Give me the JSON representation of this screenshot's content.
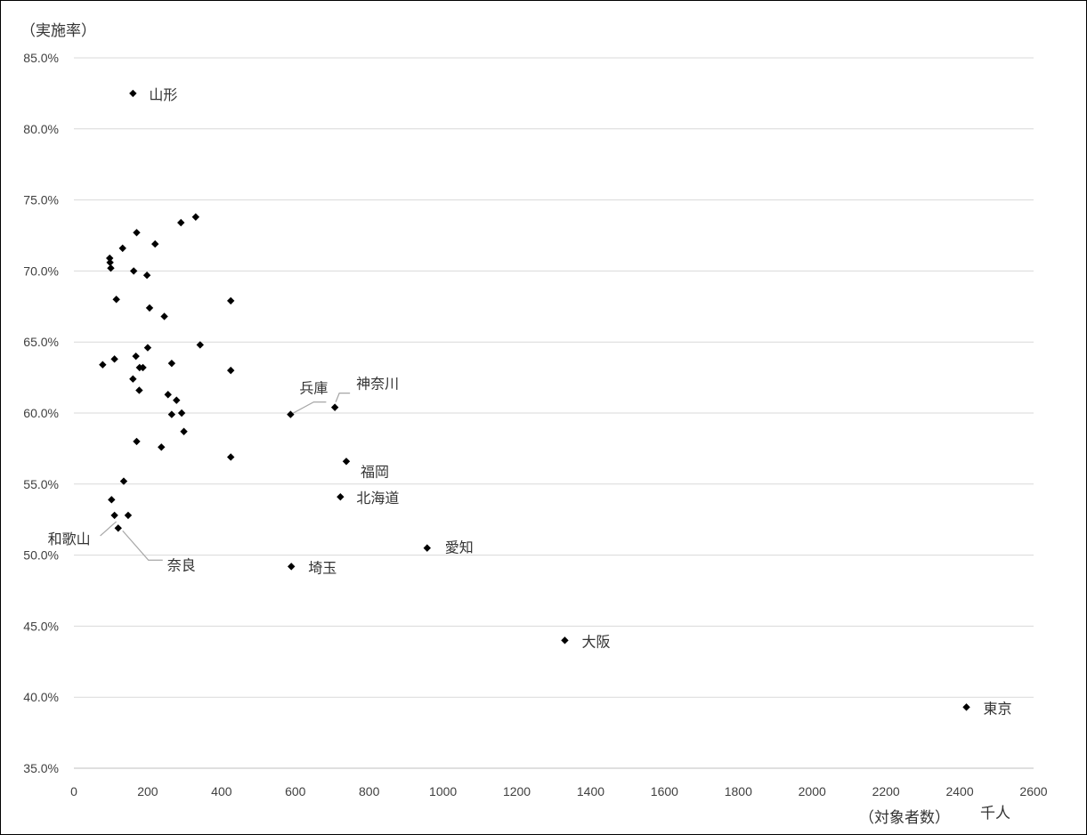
{
  "chart_data": {
    "type": "scatter",
    "ylabel": "（実施率）",
    "xlabel": "（対象者数）",
    "xunit": "千人",
    "xlim": [
      0,
      2600
    ],
    "ylim": [
      35,
      85
    ],
    "x_ticks": [
      0,
      200,
      400,
      600,
      800,
      1000,
      1200,
      1400,
      1600,
      1800,
      2000,
      2200,
      2400,
      2600
    ],
    "y_ticks": [
      35,
      40,
      45,
      50,
      55,
      60,
      65,
      70,
      75,
      80,
      85
    ],
    "y_tick_labels": [
      "35.0%",
      "40.0%",
      "45.0%",
      "50.0%",
      "55.0%",
      "60.0%",
      "65.0%",
      "70.0%",
      "75.0%",
      "80.0%",
      "85.0%"
    ],
    "grid": "horizontal",
    "legend": "none",
    "points": [
      {
        "x": 160,
        "y": 82.5,
        "label": "山形"
      },
      {
        "x": 587,
        "y": 59.9,
        "label": "兵庫"
      },
      {
        "x": 707,
        "y": 60.4,
        "label": "神奈川"
      },
      {
        "x": 738,
        "y": 56.6,
        "label": "福岡"
      },
      {
        "x": 722,
        "y": 54.1,
        "label": "北海道"
      },
      {
        "x": 957,
        "y": 50.5,
        "label": "愛知"
      },
      {
        "x": 589,
        "y": 49.2,
        "label": "埼玉"
      },
      {
        "x": 110,
        "y": 52.8,
        "label": "和歌山"
      },
      {
        "x": 120,
        "y": 51.9,
        "label": "奈良"
      },
      {
        "x": 1330,
        "y": 44.0,
        "label": "大阪"
      },
      {
        "x": 2418,
        "y": 39.3,
        "label": "東京"
      },
      {
        "x": 330,
        "y": 73.8
      },
      {
        "x": 290,
        "y": 73.4
      },
      {
        "x": 170,
        "y": 72.7
      },
      {
        "x": 220,
        "y": 71.9
      },
      {
        "x": 132,
        "y": 71.6
      },
      {
        "x": 97,
        "y": 70.9
      },
      {
        "x": 98,
        "y": 70.6
      },
      {
        "x": 100,
        "y": 70.2
      },
      {
        "x": 162,
        "y": 70.0
      },
      {
        "x": 198,
        "y": 69.7
      },
      {
        "x": 115,
        "y": 68.0
      },
      {
        "x": 425,
        "y": 67.9
      },
      {
        "x": 205,
        "y": 67.4
      },
      {
        "x": 245,
        "y": 66.8
      },
      {
        "x": 342,
        "y": 64.8
      },
      {
        "x": 200,
        "y": 64.6
      },
      {
        "x": 168,
        "y": 64.0
      },
      {
        "x": 110,
        "y": 63.8
      },
      {
        "x": 265,
        "y": 63.5
      },
      {
        "x": 78,
        "y": 63.4
      },
      {
        "x": 178,
        "y": 63.2
      },
      {
        "x": 187,
        "y": 63.2
      },
      {
        "x": 425,
        "y": 63.0
      },
      {
        "x": 160,
        "y": 62.4
      },
      {
        "x": 177,
        "y": 61.6
      },
      {
        "x": 255,
        "y": 61.3
      },
      {
        "x": 278,
        "y": 60.9
      },
      {
        "x": 292,
        "y": 60.0
      },
      {
        "x": 265,
        "y": 59.9
      },
      {
        "x": 298,
        "y": 58.7
      },
      {
        "x": 170,
        "y": 58.0
      },
      {
        "x": 237,
        "y": 57.6
      },
      {
        "x": 425,
        "y": 56.9
      },
      {
        "x": 135,
        "y": 55.2
      },
      {
        "x": 102,
        "y": 53.9
      },
      {
        "x": 147,
        "y": 52.8
      }
    ]
  }
}
